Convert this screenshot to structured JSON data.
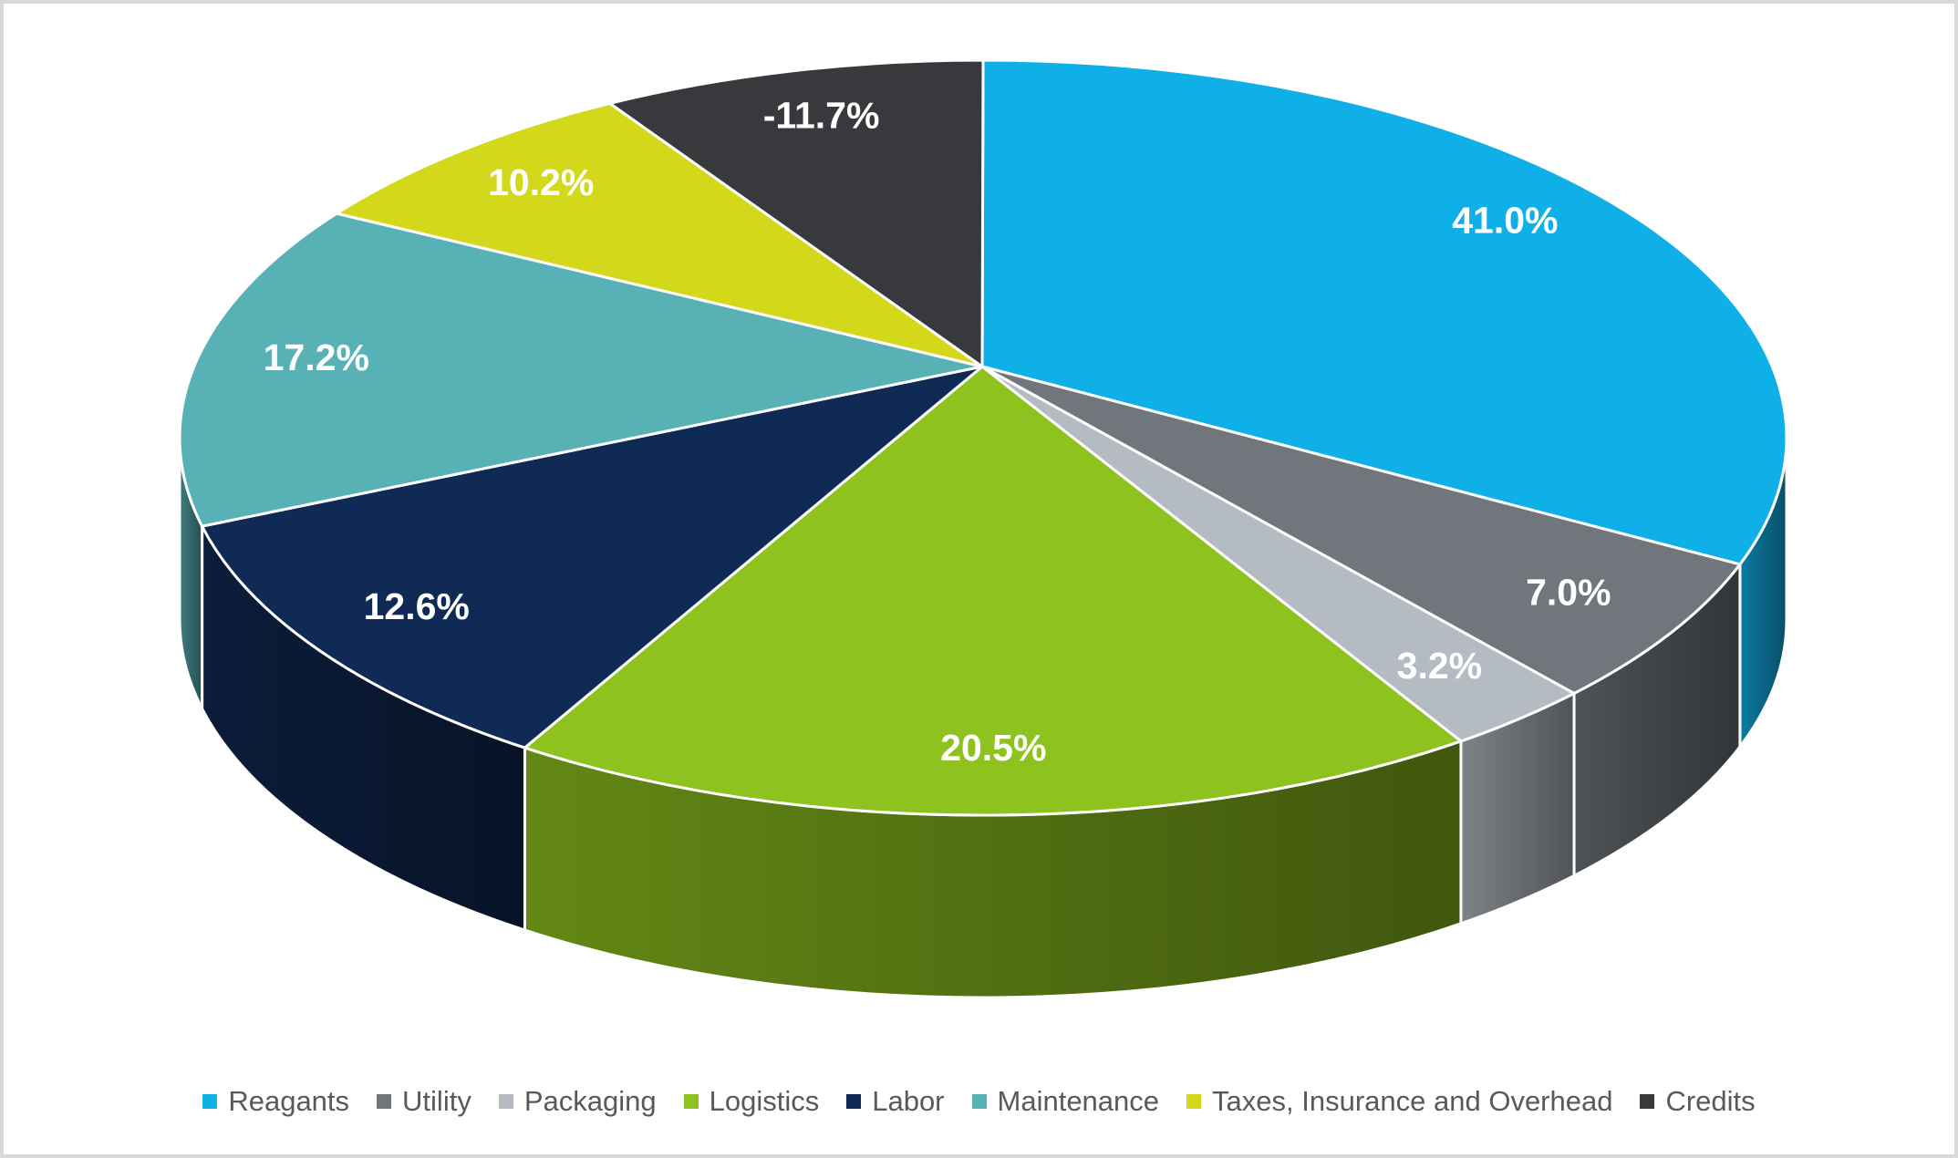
{
  "chart_data": {
    "type": "pie",
    "style": "3d",
    "title": "",
    "legend_position": "bottom",
    "background": "#ffffff",
    "border_color": "#d9d9d9",
    "label_color": "#ffffff",
    "legend_text_color": "#595959",
    "categories": [
      "Reagants",
      "Utility",
      "Packaging",
      "Logistics",
      "Labor",
      "Maintenance",
      "Taxes, Insurance and Overhead",
      "Credits"
    ],
    "values": [
      41.0,
      7.0,
      3.2,
      20.5,
      12.6,
      17.2,
      10.2,
      -11.7
    ],
    "labels": [
      "41.0%",
      "7.0%",
      "3.2%",
      "20.5%",
      "12.6%",
      "17.2%",
      "10.2%",
      "-11.7%"
    ],
    "colors": [
      "#0FB0E8",
      "#70767B",
      "#B4BBC2",
      "#8EC21E",
      "#0F2A55",
      "#58B2B5",
      "#D3D91A",
      "#37393C"
    ]
  }
}
